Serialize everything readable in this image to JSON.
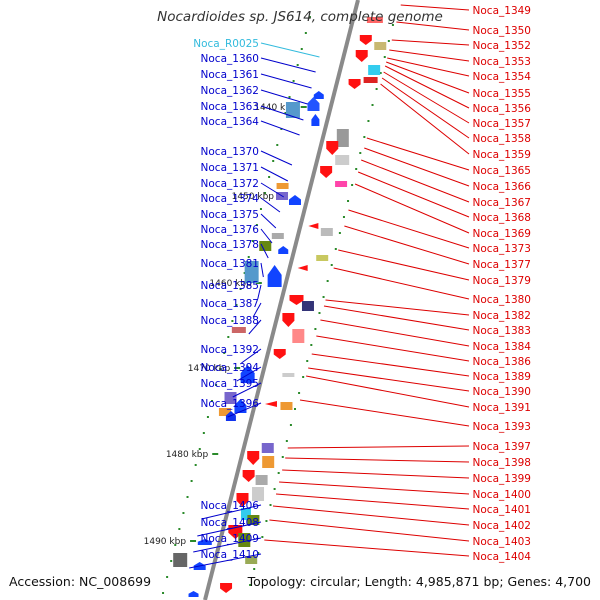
{
  "title": "Nocardioides sp. JS614, complete genome",
  "footer": {
    "accession": "Accession: NC_008699",
    "topology": "Topology: circular; Length: 4,985,871 bp; Genes: 4,700"
  },
  "colors": {
    "forward_label": "#0000cc",
    "reverse_label": "#dd0000",
    "rna_label": "#33bbdd",
    "axis": "#8a8a8a",
    "tick": "#2a8a2a"
  },
  "scale_ticks": [
    "1440 kbp",
    "1450 kbp",
    "1460 kbp",
    "1470 kbp",
    "1480 kbp",
    "1490 kbp"
  ],
  "labels_left": [
    {
      "text": "Noca_R0025",
      "type": "rna"
    },
    {
      "text": "Noca_1360",
      "type": "cds"
    },
    {
      "text": "Noca_1361",
      "type": "cds"
    },
    {
      "text": "Noca_1362",
      "type": "cds"
    },
    {
      "text": "Noca_1363",
      "type": "cds"
    },
    {
      "text": "Noca_1364",
      "type": "cds"
    },
    {
      "text": "Noca_1370",
      "type": "cds"
    },
    {
      "text": "Noca_1371",
      "type": "cds"
    },
    {
      "text": "Noca_1372",
      "type": "cds"
    },
    {
      "text": "Noca_1374",
      "type": "cds"
    },
    {
      "text": "Noca_1375",
      "type": "cds"
    },
    {
      "text": "Noca_1376",
      "type": "cds"
    },
    {
      "text": "Noca_1378",
      "type": "cds"
    },
    {
      "text": "Noca_1381",
      "type": "cds"
    },
    {
      "text": "Noca_1385",
      "type": "cds"
    },
    {
      "text": "Noca_1387",
      "type": "cds"
    },
    {
      "text": "Noca_1388",
      "type": "cds"
    },
    {
      "text": "Noca_1392",
      "type": "cds"
    },
    {
      "text": "Noca_1394",
      "type": "cds"
    },
    {
      "text": "Noca_1395",
      "type": "cds"
    },
    {
      "text": "Noca_1396",
      "type": "cds"
    },
    {
      "text": "Noca_1406",
      "type": "cds"
    },
    {
      "text": "Noca_1408",
      "type": "cds"
    },
    {
      "text": "Noca_1409",
      "type": "cds"
    },
    {
      "text": "Noca_1410",
      "type": "cds"
    }
  ],
  "labels_right": [
    {
      "text": "Noca_1349"
    },
    {
      "text": "Noca_1350"
    },
    {
      "text": "Noca_1352"
    },
    {
      "text": "Noca_1353"
    },
    {
      "text": "Noca_1354"
    },
    {
      "text": "Noca_1355"
    },
    {
      "text": "Noca_1356"
    },
    {
      "text": "Noca_1357"
    },
    {
      "text": "Noca_1358"
    },
    {
      "text": "Noca_1359"
    },
    {
      "text": "Noca_1365"
    },
    {
      "text": "Noca_1366"
    },
    {
      "text": "Noca_1367"
    },
    {
      "text": "Noca_1368"
    },
    {
      "text": "Noca_1369"
    },
    {
      "text": "Noca_1373"
    },
    {
      "text": "Noca_1377"
    },
    {
      "text": "Noca_1379"
    },
    {
      "text": "Noca_1380"
    },
    {
      "text": "Noca_1382"
    },
    {
      "text": "Noca_1383"
    },
    {
      "text": "Noca_1384"
    },
    {
      "text": "Noca_1386"
    },
    {
      "text": "Noca_1389"
    },
    {
      "text": "Noca_1390"
    },
    {
      "text": "Noca_1391"
    },
    {
      "text": "Noca_1393"
    },
    {
      "text": "Noca_1397"
    },
    {
      "text": "Noca_1398"
    },
    {
      "text": "Noca_1399"
    },
    {
      "text": "Noca_1400"
    },
    {
      "text": "Noca_1401"
    },
    {
      "text": "Noca_1402"
    },
    {
      "text": "Noca_1403"
    },
    {
      "text": "Noca_1404"
    }
  ]
}
